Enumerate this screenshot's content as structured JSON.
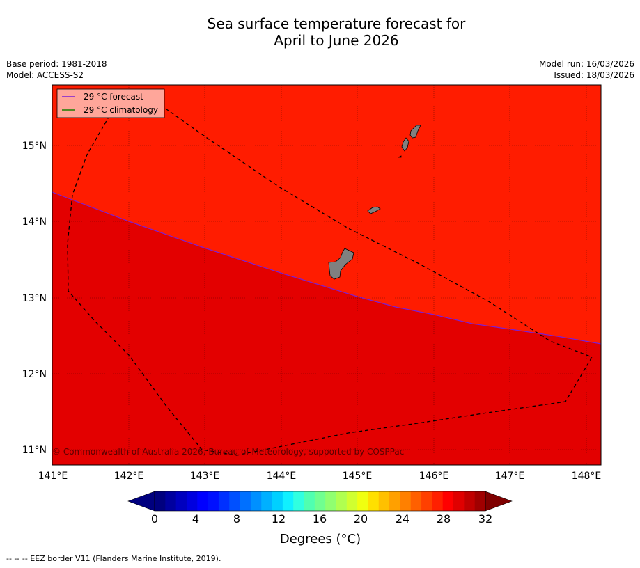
{
  "title": {
    "line1": "Sea surface temperature forecast for",
    "line2": "April to June 2026"
  },
  "meta": {
    "base_period": "Base period: 1981-2018",
    "model": "Model: ACCESS-S2",
    "model_run": "Model run: 16/03/2026",
    "issued": "Issued: 18/03/2026"
  },
  "map": {
    "x_ticks": [
      "141°E",
      "142°E",
      "143°E",
      "144°E",
      "145°E",
      "146°E",
      "147°E",
      "148°E"
    ],
    "y_ticks": [
      "15°N",
      "14°N",
      "13°N",
      "12°N",
      "11°N"
    ],
    "colors": {
      "north_region": "#ff1c00",
      "south_region": "#e30000",
      "land": "#808080",
      "forecast_line": "#7a1fd6",
      "climatology_line": "#1a7f00"
    },
    "legend": {
      "forecast": "29 °C  forecast",
      "climatology": "29 °C  climatology"
    },
    "copyright": "© Commonwealth of Australia 2026, Bureau of Meteorology, supported by COSPPac"
  },
  "colorbar": {
    "ticks": [
      "0",
      "4",
      "8",
      "12",
      "16",
      "20",
      "24",
      "28",
      "32"
    ],
    "label": "Degrees (°C)",
    "colors": [
      "#00007f",
      "#00009f",
      "#0000bf",
      "#0000df",
      "#0000ff",
      "#0010ff",
      "#0030ff",
      "#0050ff",
      "#0070ff",
      "#0090ff",
      "#00b0ff",
      "#00d0ff",
      "#10f0ff",
      "#30ffe0",
      "#50ffb0",
      "#70ff90",
      "#90ff70",
      "#b0ff50",
      "#d0ff30",
      "#f0ff10",
      "#ffe000",
      "#ffc000",
      "#ffa000",
      "#ff8000",
      "#ff6000",
      "#ff4000",
      "#ff2000",
      "#ff0000",
      "#e00000",
      "#c00000",
      "#a00000"
    ],
    "under_color": "#00007f",
    "over_color": "#7f0000"
  },
  "footnote": "--  --  -- EEZ border V11 (Flanders Marine Institute, 2019)."
}
